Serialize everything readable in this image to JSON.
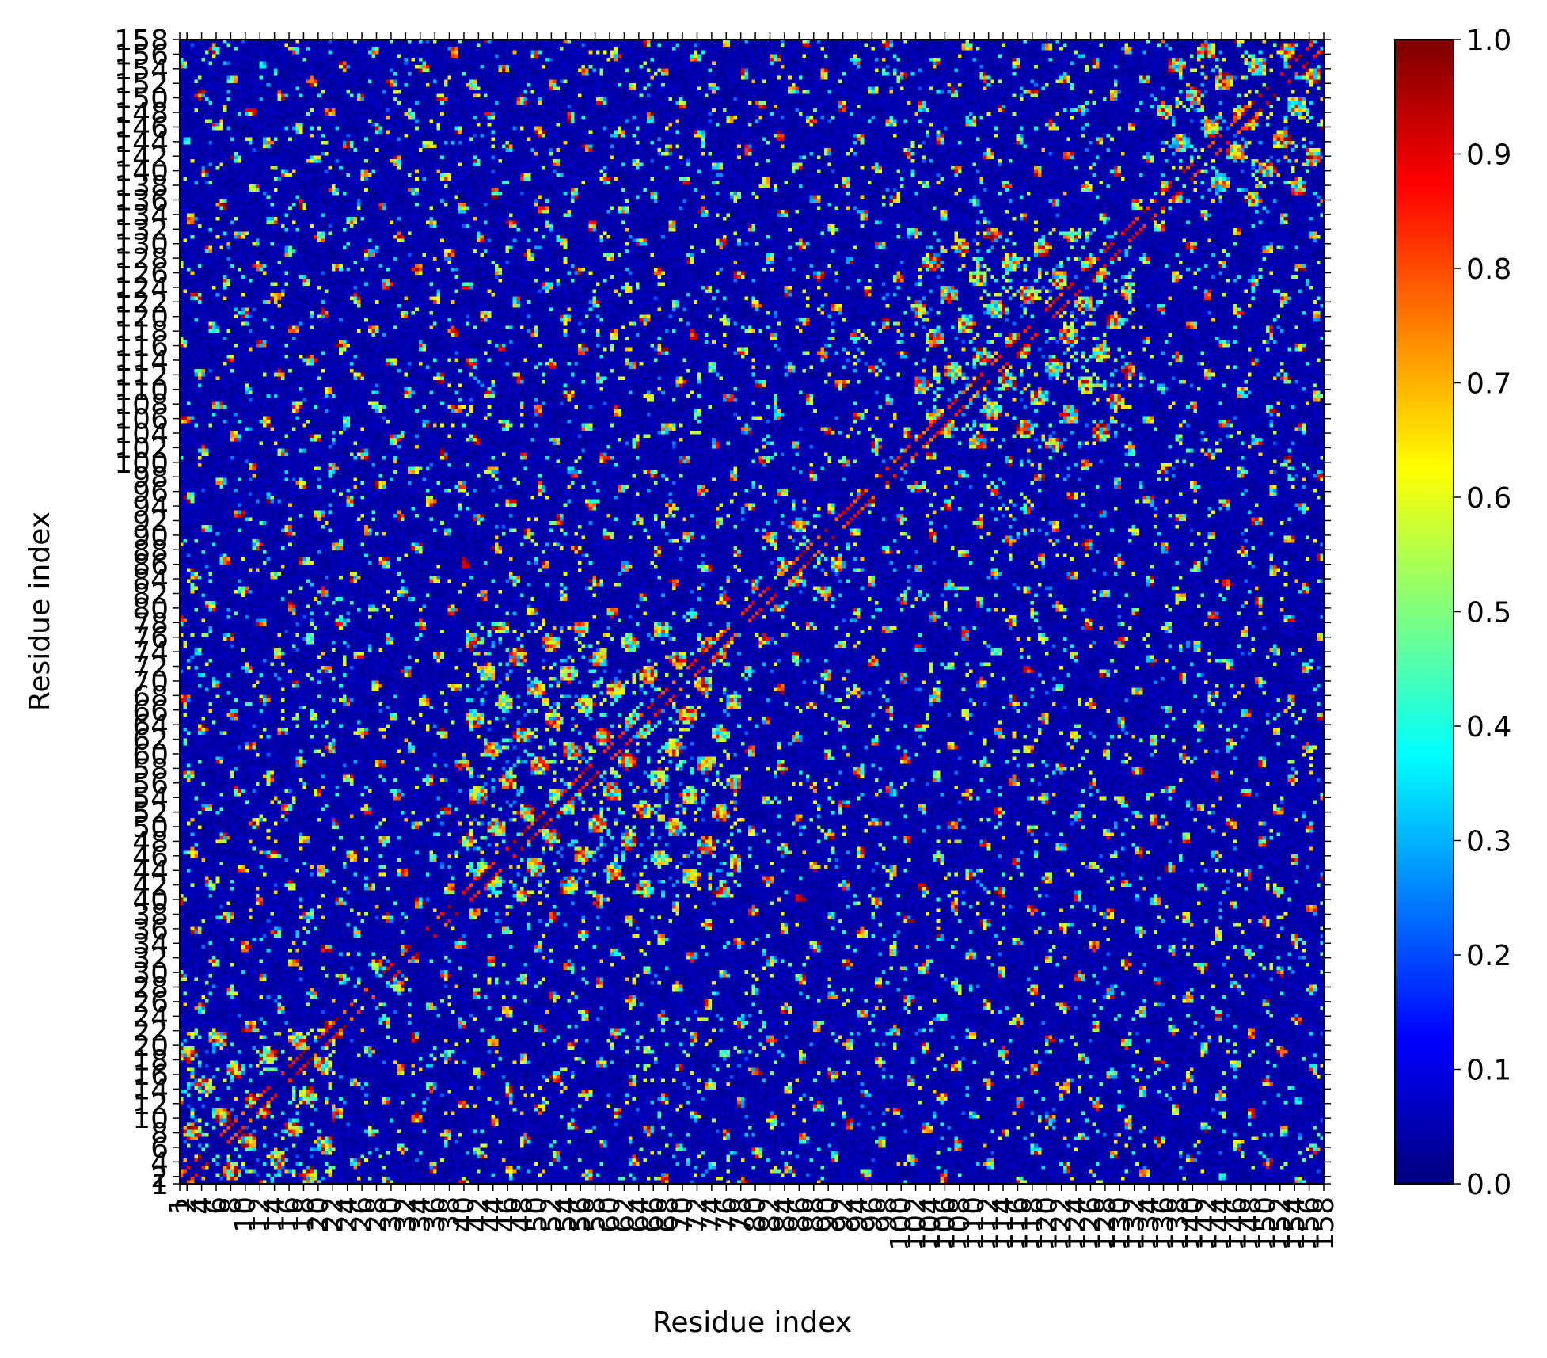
{
  "chart_data": {
    "type": "heatmap",
    "title": "",
    "xlabel": "Residue index",
    "ylabel": "Residue index",
    "x_range": [
      1,
      158
    ],
    "y_range": [
      1,
      158
    ],
    "x_tick_labels": [
      "1",
      "2",
      "4",
      "6",
      "8",
      "10",
      "12",
      "14",
      "16",
      "18",
      "20",
      "22",
      "24",
      "26",
      "28",
      "30",
      "32",
      "34",
      "36",
      "38",
      "40",
      "42",
      "44",
      "46",
      "48",
      "50",
      "52",
      "54",
      "56",
      "58",
      "60",
      "62",
      "64",
      "66",
      "68",
      "70",
      "72",
      "74",
      "76",
      "78",
      "80",
      "82",
      "84",
      "86",
      "88",
      "90",
      "92",
      "94",
      "96",
      "98",
      "100",
      "102",
      "104",
      "106",
      "108",
      "110",
      "112",
      "114",
      "116",
      "118",
      "120",
      "122",
      "124",
      "126",
      "128",
      "130",
      "132",
      "134",
      "136",
      "138",
      "140",
      "142",
      "144",
      "146",
      "148",
      "150",
      "152",
      "154",
      "156",
      "158"
    ],
    "y_tick_labels": [
      "1",
      "2",
      "4",
      "6",
      "8",
      "10",
      "12",
      "14",
      "16",
      "18",
      "20",
      "22",
      "24",
      "26",
      "28",
      "30",
      "32",
      "34",
      "36",
      "38",
      "40",
      "42",
      "44",
      "46",
      "48",
      "50",
      "52",
      "54",
      "56",
      "58",
      "60",
      "62",
      "64",
      "66",
      "68",
      "70",
      "72",
      "74",
      "76",
      "78",
      "80",
      "82",
      "84",
      "86",
      "88",
      "90",
      "92",
      "94",
      "96",
      "98",
      "100",
      "102",
      "104",
      "106",
      "108",
      "110",
      "112",
      "114",
      "116",
      "118",
      "120",
      "122",
      "124",
      "126",
      "128",
      "130",
      "132",
      "134",
      "136",
      "138",
      "140",
      "142",
      "144",
      "146",
      "148",
      "150",
      "152",
      "154",
      "156",
      "158"
    ],
    "colorbar": {
      "colormap": "jet",
      "vmin": 0.0,
      "vmax": 1.0,
      "tick_labels": [
        "0.0",
        "0.1",
        "0.2",
        "0.3",
        "0.4",
        "0.5",
        "0.6",
        "0.7",
        "0.8",
        "0.9",
        "1.0"
      ]
    },
    "value_range": [
      0.0,
      1.0
    ],
    "grid": false,
    "symmetric": true,
    "high_value_blocks": [
      {
        "residues": [
          1,
          22
        ],
        "level": "high"
      },
      {
        "residues": [
          28,
          32
        ],
        "level": "high"
      },
      {
        "residues": [
          40,
          78
        ],
        "level": "high"
      },
      {
        "residues": [
          82,
          92
        ],
        "level": "medium"
      },
      {
        "residues": [
          102,
          132
        ],
        "level": "high"
      },
      {
        "residues": [
          136,
          158
        ],
        "level": "high"
      }
    ]
  }
}
